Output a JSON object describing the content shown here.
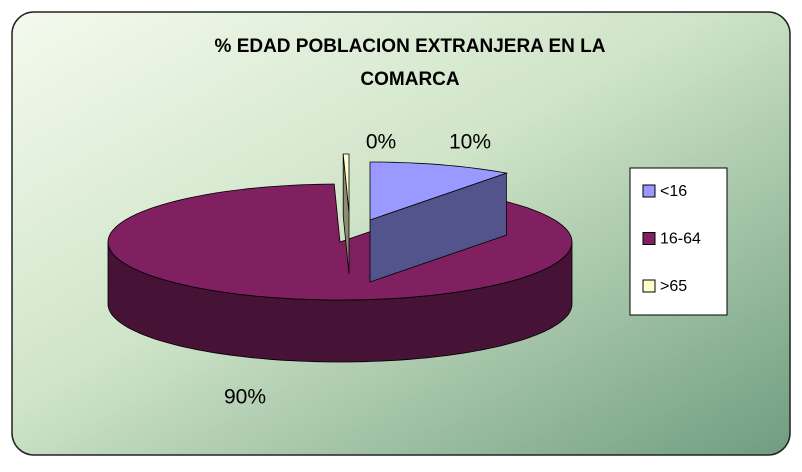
{
  "chart_data": {
    "type": "pie3d",
    "title": "% EDAD POBLACION EXTRANJERA EN LA COMARCA",
    "categories": [
      "<16",
      "16-64",
      ">65"
    ],
    "values": [
      10,
      89.6,
      0.4
    ],
    "value_labels": [
      "10%",
      "90%",
      "0%"
    ],
    "colors": [
      "#9999ff",
      "#802060",
      "#ffffcc"
    ],
    "legend": "right"
  }
}
